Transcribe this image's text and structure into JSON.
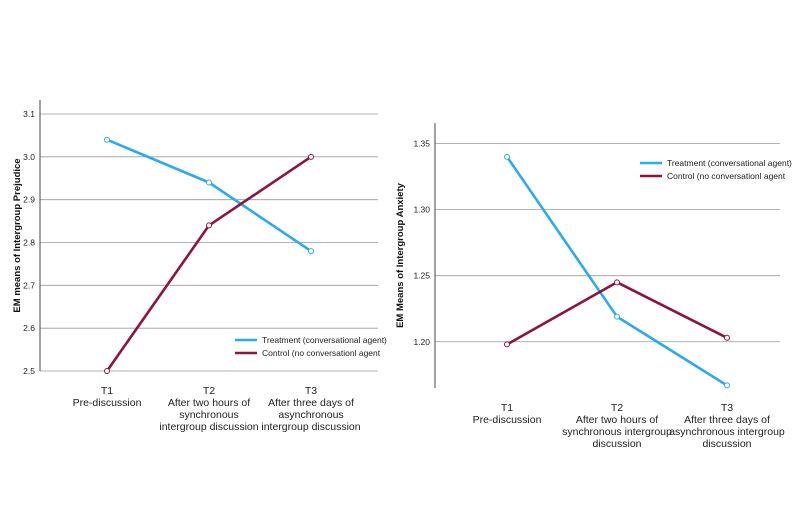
{
  "chart_data": [
    {
      "type": "line",
      "ylabel": "EM means of Intergroup Prejudice",
      "ylim": [
        2.5,
        3.1
      ],
      "yticks": [
        "2.5",
        "2.6",
        "2.7",
        "2.8",
        "2.9",
        "3.0",
        "3.1"
      ],
      "categories": [
        [
          "T1",
          "Pre-discussion"
        ],
        [
          "T2",
          "After two hours of",
          "synchronous",
          "intergroup discussion"
        ],
        [
          "T3",
          "After three days of",
          "asynchronous",
          "intergroup discussion"
        ]
      ],
      "series": [
        {
          "name": "Treatment (conversational agent)",
          "color": "#29aaf2",
          "values": [
            3.04,
            2.94,
            2.78
          ]
        },
        {
          "name": "Control (no conversationl agent",
          "color": "#8c1440",
          "values": [
            2.5,
            2.84,
            3.0
          ]
        }
      ],
      "legend": "bottom-right"
    },
    {
      "type": "line",
      "ylabel": "EM Means of Intergroup Anxiety",
      "ylim": [
        1.165,
        1.355
      ],
      "yticks": [
        "1.20",
        "1.25",
        "1.30",
        "1.35"
      ],
      "categories": [
        [
          "T1",
          "Pre-discussion"
        ],
        [
          "T2",
          "After two hours of",
          "synchronous intergroup",
          "discussion"
        ],
        [
          "T3",
          "After three days of",
          "asynchronous intergroup",
          "discussion"
        ]
      ],
      "series": [
        {
          "name": "Treatment (conversational agent)",
          "color": "#29aaf2",
          "values": [
            1.34,
            1.219,
            1.167
          ]
        },
        {
          "name": "Control (no conversationl agent",
          "color": "#8c1440",
          "values": [
            1.198,
            1.245,
            1.203
          ]
        }
      ],
      "legend": "top-right"
    }
  ]
}
